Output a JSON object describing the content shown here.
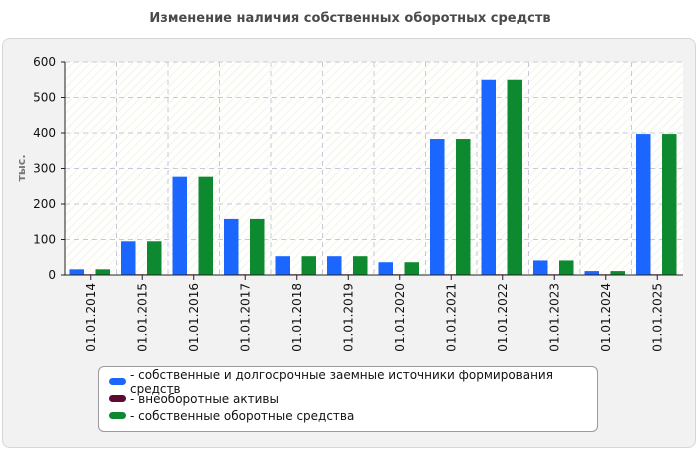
{
  "chart_data": {
    "type": "bar",
    "title": "Изменение наличия собственных оборотных средств",
    "ylabel": "тыс.",
    "xlabel": "",
    "ylim": [
      0,
      600
    ],
    "yticks": [
      0,
      100,
      200,
      300,
      400,
      500,
      600
    ],
    "grid": true,
    "legend_position": "bottom",
    "categories": [
      "01.01.2014",
      "01.01.2015",
      "01.01.2016",
      "01.01.2017",
      "01.01.2018",
      "01.01.2019",
      "01.01.2020",
      "01.01.2021",
      "01.01.2022",
      "01.01.2023",
      "01.01.2024",
      "01.01.2025"
    ],
    "series": [
      {
        "name": "- собственные и долгосрочные заемные источники формирования средств",
        "color": "#1a66ff",
        "values": [
          16,
          95,
          277,
          158,
          53,
          53,
          36,
          383,
          550,
          41,
          11,
          397
        ]
      },
      {
        "name": "- внеоборотные активы",
        "color": "#5c0a32",
        "values": [
          2,
          2,
          2,
          2,
          2,
          2,
          2,
          2,
          2,
          2,
          2,
          2
        ]
      },
      {
        "name": "- собственные оборотные средства",
        "color": "#0d8a2f",
        "values": [
          16,
          95,
          277,
          158,
          53,
          53,
          36,
          383,
          550,
          41,
          11,
          397
        ]
      }
    ]
  }
}
